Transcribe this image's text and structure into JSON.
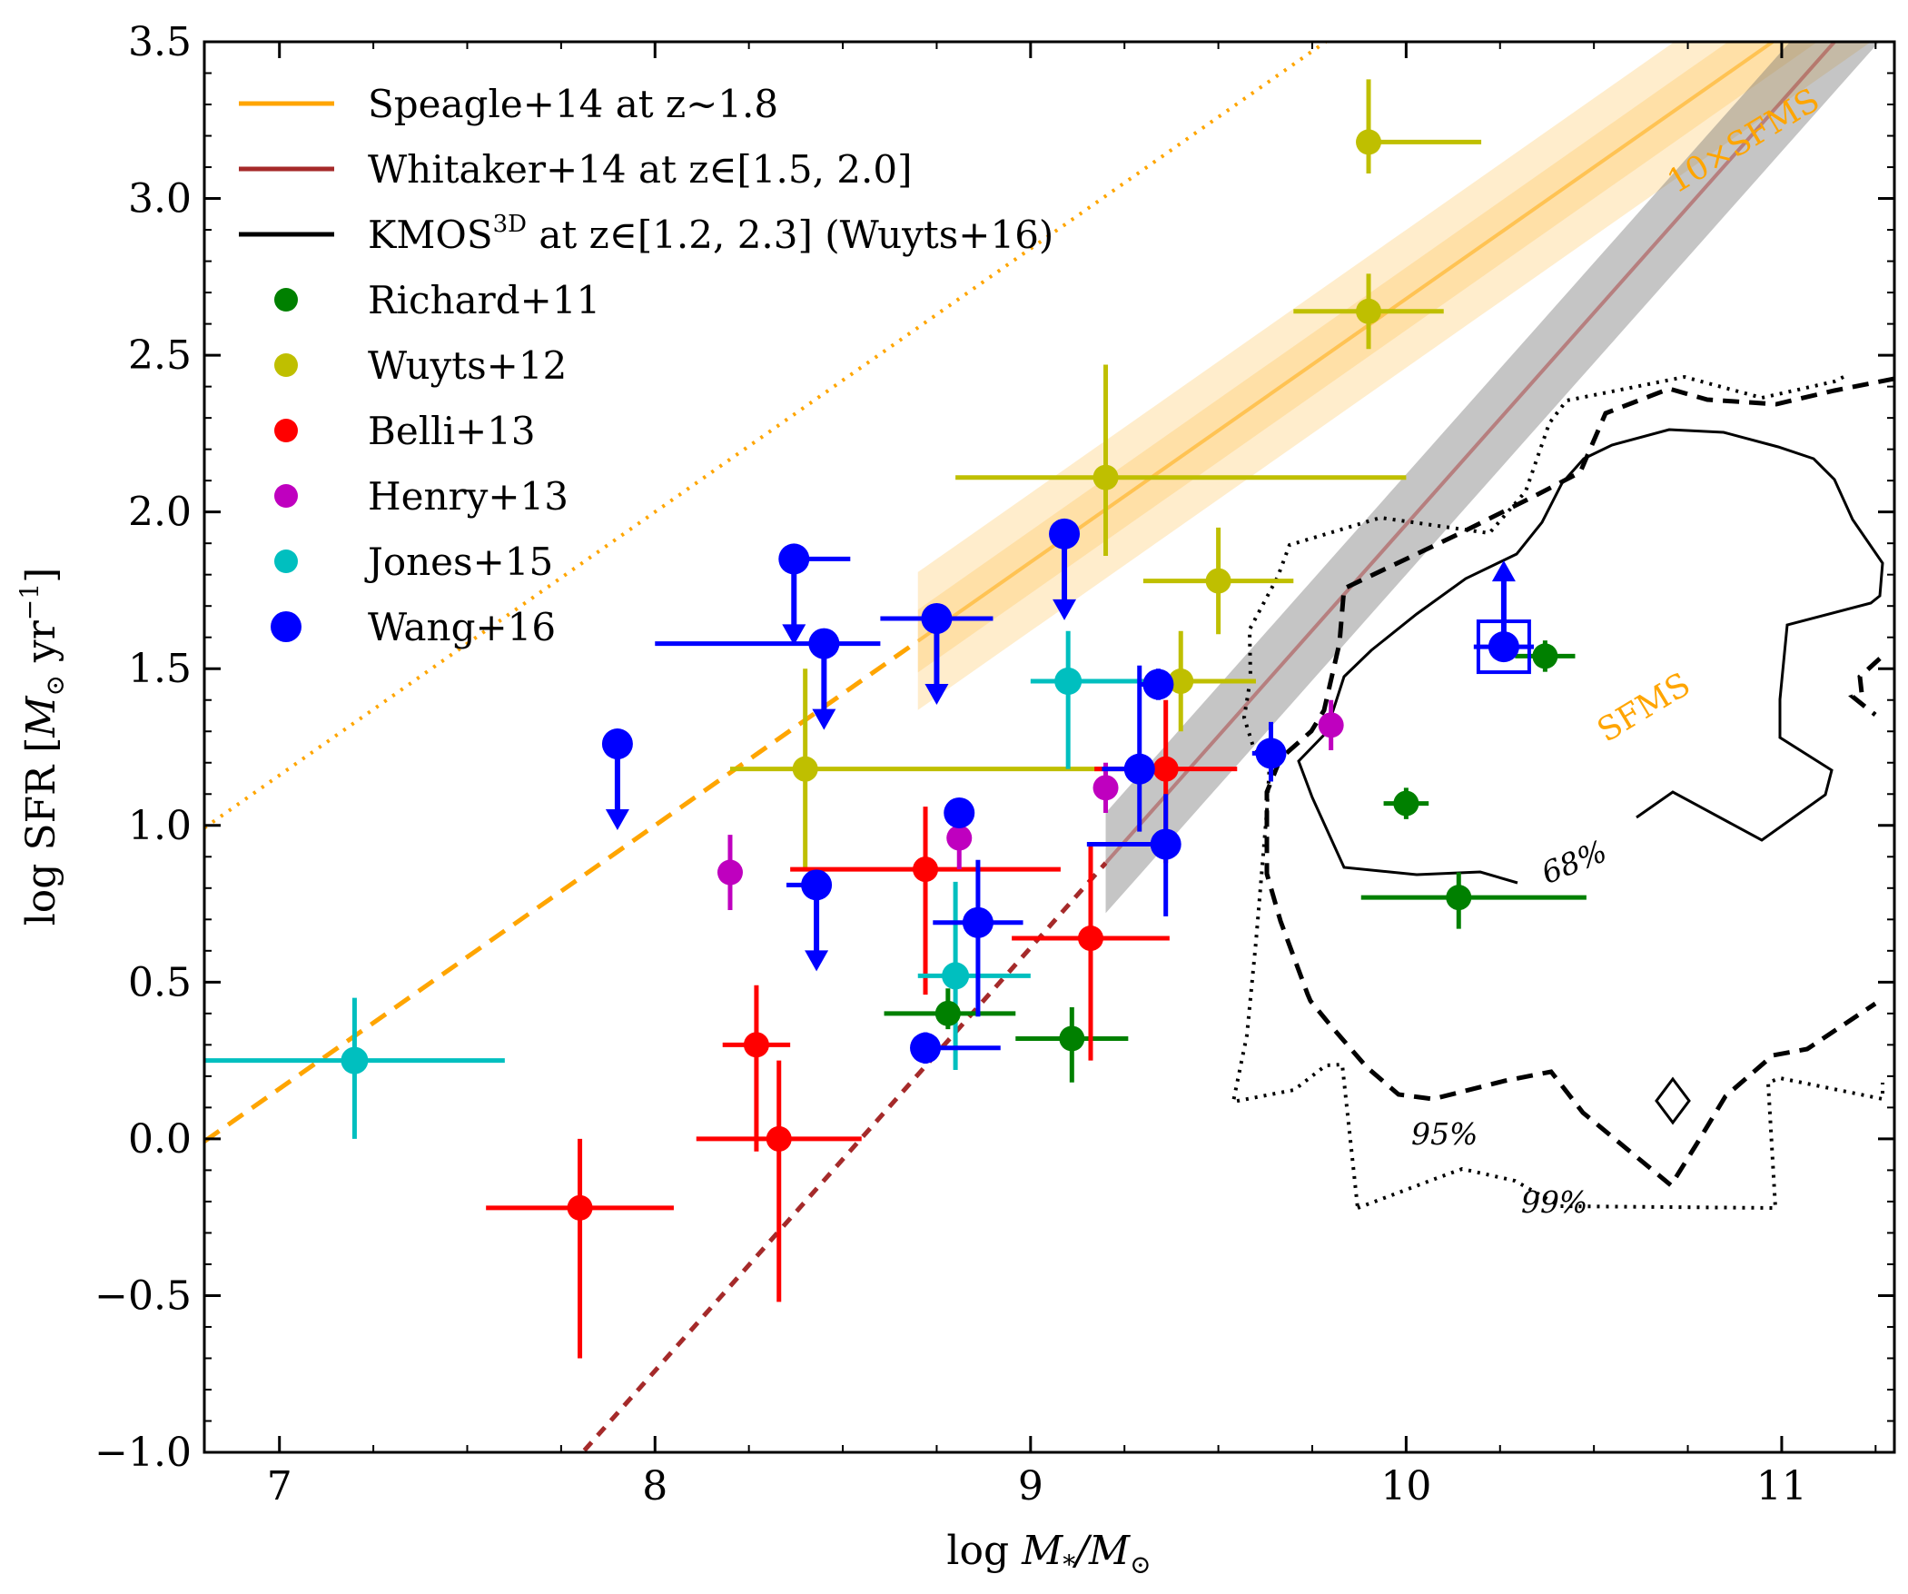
{
  "chart_data": {
    "type": "scatter",
    "xlabel_main": "log ",
    "xlabel_var": "M",
    "xlabel_sub": "*",
    "xlabel_sep": "/",
    "xlabel_den": "M",
    "xlabel_sun": "⊙",
    "ylabel_main": "log SFR [",
    "ylabel_var": "M",
    "ylabel_sun": "⊙",
    "ylabel_unit": " yr",
    "ylabel_exp": "−1",
    "ylabel_close": "]",
    "xlim": [
      6.8,
      11.3
    ],
    "ylim": [
      -1.0,
      3.5
    ],
    "xticks": [
      7,
      8,
      9,
      10,
      11
    ],
    "xtick_labels": [
      "7",
      "8",
      "9",
      "10",
      "11"
    ],
    "yticks": [
      -1.0,
      -0.5,
      0.0,
      0.5,
      1.0,
      1.5,
      2.0,
      2.5,
      3.0,
      3.5
    ],
    "ytick_labels": [
      "−1.0",
      "−0.5",
      "0.0",
      "0.5",
      "1.0",
      "1.5",
      "2.0",
      "2.5",
      "3.0",
      "3.5"
    ],
    "colors": {
      "speagle": "#ffa500",
      "whitaker": "#a52a2a",
      "kmos": "#000000",
      "richard": "#008000",
      "wuyts": "#bfbf00",
      "belli": "#ff0000",
      "henry": "#bf00bf",
      "jones": "#00bfbf",
      "wang": "#0000ff"
    },
    "legend": [
      {
        "label": "Speagle+14 at z∼1.8",
        "color": "#ffa500",
        "kind": "line"
      },
      {
        "label": "Whitaker+14 at z∈[1.5, 2.0]",
        "color": "#a52a2a",
        "kind": "line"
      },
      {
        "label_pre": "KMOS",
        "label_sup": "3D",
        "label_post": " at z∈[1.2, 2.3] (Wuyts+16)",
        "color": "#000000",
        "kind": "line"
      },
      {
        "label": "Richard+11",
        "color": "#008000",
        "kind": "dot"
      },
      {
        "label": "Wuyts+12",
        "color": "#bfbf00",
        "kind": "dot"
      },
      {
        "label": "Belli+13",
        "color": "#ff0000",
        "kind": "dot"
      },
      {
        "label": "Henry+13",
        "color": "#bf00bf",
        "kind": "dot"
      },
      {
        "label": "Jones+15",
        "color": "#00bfbf",
        "kind": "dot"
      },
      {
        "label": "Wang+16",
        "color": "#0000ff",
        "kind": "bigdot"
      }
    ],
    "annotations": {
      "sfms": "SFMS",
      "sfms10": "10×SFMS",
      "c68": "68%",
      "c95": "95%",
      "c99": "99%"
    },
    "speagle": {
      "x": [
        6.8,
        11.3
      ],
      "dashed_below": 8.7
    },
    "whitaker": {
      "x": [
        6.8,
        11.3
      ],
      "dashed_below": 9.2
    },
    "series": [
      {
        "name": "Richard+11",
        "color": "#008000",
        "r": 14,
        "points": [
          {
            "x": 8.78,
            "y": 0.4,
            "xl": 0.17,
            "xh": 0.18,
            "yl": 0.05,
            "yh": 0.08
          },
          {
            "x": 9.11,
            "y": 0.32,
            "xl": 0.15,
            "xh": 0.15,
            "yl": 0.14,
            "yh": 0.1
          },
          {
            "x": 10.0,
            "y": 1.07,
            "xl": 0.06,
            "xh": 0.06,
            "yl": 0.05,
            "yh": 0.05
          },
          {
            "x": 10.14,
            "y": 0.77,
            "xl": 0.26,
            "xh": 0.34,
            "yl": 0.1,
            "yh": 0.08
          },
          {
            "x": 10.37,
            "y": 1.54,
            "xl": 0.08,
            "xh": 0.08,
            "yl": 0.05,
            "yh": 0.05
          }
        ]
      },
      {
        "name": "Wuyts+12",
        "color": "#bfbf00",
        "r": 14,
        "points": [
          {
            "x": 9.9,
            "y": 3.18,
            "xl": 0.0,
            "xh": 0.3,
            "yl": 0.1,
            "yh": 0.2
          },
          {
            "x": 9.9,
            "y": 2.64,
            "xl": 0.2,
            "xh": 0.2,
            "yl": 0.12,
            "yh": 0.12
          },
          {
            "x": 9.2,
            "y": 2.11,
            "xl": 0.4,
            "xh": 0.8,
            "yl": 0.25,
            "yh": 0.36
          },
          {
            "x": 9.5,
            "y": 1.78,
            "xl": 0.2,
            "xh": 0.2,
            "yl": 0.17,
            "yh": 0.17
          },
          {
            "x": 8.4,
            "y": 1.18,
            "xl": 0.2,
            "xh": 0.8,
            "yl": 0.32,
            "yh": 0.32
          },
          {
            "x": 9.4,
            "y": 1.46,
            "xl": 0.2,
            "xh": 0.2,
            "yl": 0.16,
            "yh": 0.16
          }
        ]
      },
      {
        "name": "Belli+13",
        "color": "#ff0000",
        "r": 14,
        "points": [
          {
            "x": 7.8,
            "y": -0.22,
            "xl": 0.25,
            "xh": 0.25,
            "yl": 0.48,
            "yh": 0.22
          },
          {
            "x": 8.27,
            "y": 0.3,
            "xl": 0.09,
            "xh": 0.09,
            "yl": 0.34,
            "yh": 0.19
          },
          {
            "x": 8.33,
            "y": 0.0,
            "xl": 0.22,
            "xh": 0.22,
            "yl": 0.52,
            "yh": 0.25
          },
          {
            "x": 8.72,
            "y": 0.86,
            "xl": 0.36,
            "xh": 0.36,
            "yl": 0.4,
            "yh": 0.2
          },
          {
            "x": 9.16,
            "y": 0.64,
            "xl": 0.21,
            "xh": 0.21,
            "yl": 0.39,
            "yh": 0.3
          },
          {
            "x": 9.36,
            "y": 1.18,
            "xl": 0.19,
            "xh": 0.19,
            "yl": 0.3,
            "yh": 0.22
          }
        ]
      },
      {
        "name": "Henry+13",
        "color": "#bf00bf",
        "r": 14,
        "points": [
          {
            "x": 8.2,
            "y": 0.85,
            "xl": 0.0,
            "xh": 0.0,
            "yl": 0.12,
            "yh": 0.12
          },
          {
            "x": 8.81,
            "y": 0.96,
            "xl": 0.0,
            "xh": 0.0,
            "yl": 0.1,
            "yh": 0.1
          },
          {
            "x": 9.2,
            "y": 1.12,
            "xl": 0.0,
            "xh": 0.0,
            "yl": 0.08,
            "yh": 0.08
          },
          {
            "x": 9.8,
            "y": 1.32,
            "xl": 0.0,
            "xh": 0.0,
            "yl": 0.08,
            "yh": 0.08
          }
        ]
      },
      {
        "name": "Jones+15",
        "color": "#00bfbf",
        "r": 15,
        "points": [
          {
            "x": 7.2,
            "y": 0.25,
            "xl": 0.4,
            "xh": 0.4,
            "yl": 0.25,
            "yh": 0.2
          },
          {
            "x": 8.8,
            "y": 0.52,
            "xl": 0.1,
            "xh": 0.2,
            "yl": 0.3,
            "yh": 0.3
          },
          {
            "x": 9.1,
            "y": 1.46,
            "xl": 0.1,
            "xh": 0.2,
            "yl": 0.28,
            "yh": 0.16
          }
        ]
      }
    ],
    "wang": {
      "name": "Wang+16",
      "color": "#0000ff",
      "r": 17,
      "points": [
        {
          "x": 7.9,
          "y": 1.26,
          "xl": 0.0,
          "xh": 0.0,
          "yl": 0.0,
          "yh": 0.0,
          "upper": true
        },
        {
          "x": 8.37,
          "y": 1.85,
          "xl": 0.0,
          "xh": 0.15,
          "yl": 0.0,
          "yh": 0.0,
          "upper": true
        },
        {
          "x": 8.45,
          "y": 1.58,
          "xl": 0.45,
          "xh": 0.15,
          "yl": 0.0,
          "yh": 0.0,
          "upper": true
        },
        {
          "x": 8.75,
          "y": 1.66,
          "xl": 0.15,
          "xh": 0.15,
          "yl": 0.0,
          "yh": 0.0,
          "upper": true
        },
        {
          "x": 8.43,
          "y": 0.81,
          "xl": 0.08,
          "xh": 0.0,
          "yl": 0.0,
          "yh": 0.0,
          "upper": true
        },
        {
          "x": 9.09,
          "y": 1.93,
          "xl": 0.0,
          "xh": 0.0,
          "yl": 0.0,
          "yh": 0.0,
          "upper": true
        },
        {
          "x": 8.81,
          "y": 1.04,
          "xl": 0.0,
          "xh": 0.0,
          "yl": 0.04,
          "yh": 0.04
        },
        {
          "x": 8.86,
          "y": 0.69,
          "xl": 0.12,
          "xh": 0.12,
          "yl": 0.3,
          "yh": 0.2
        },
        {
          "x": 8.72,
          "y": 0.29,
          "xl": 0.0,
          "xh": 0.2,
          "yl": 0.05,
          "yh": 0.05
        },
        {
          "x": 9.29,
          "y": 1.18,
          "xl": 0.1,
          "xh": 0.1,
          "yl": 0.2,
          "yh": 0.33
        },
        {
          "x": 9.34,
          "y": 1.45,
          "xl": 0.05,
          "xh": 0.05,
          "yl": 0.05,
          "yh": 0.05
        },
        {
          "x": 9.36,
          "y": 0.94,
          "xl": 0.21,
          "xh": 0.0,
          "yl": 0.23,
          "yh": 0.16
        },
        {
          "x": 9.64,
          "y": 1.23,
          "xl": 0.05,
          "xh": 0.0,
          "yl": 0.09,
          "yh": 0.1
        },
        {
          "x": 10.26,
          "y": 1.57,
          "xl": 0.08,
          "xh": 0.08,
          "yl": 0.0,
          "yh": 0.0,
          "lower": true
        }
      ]
    }
  }
}
